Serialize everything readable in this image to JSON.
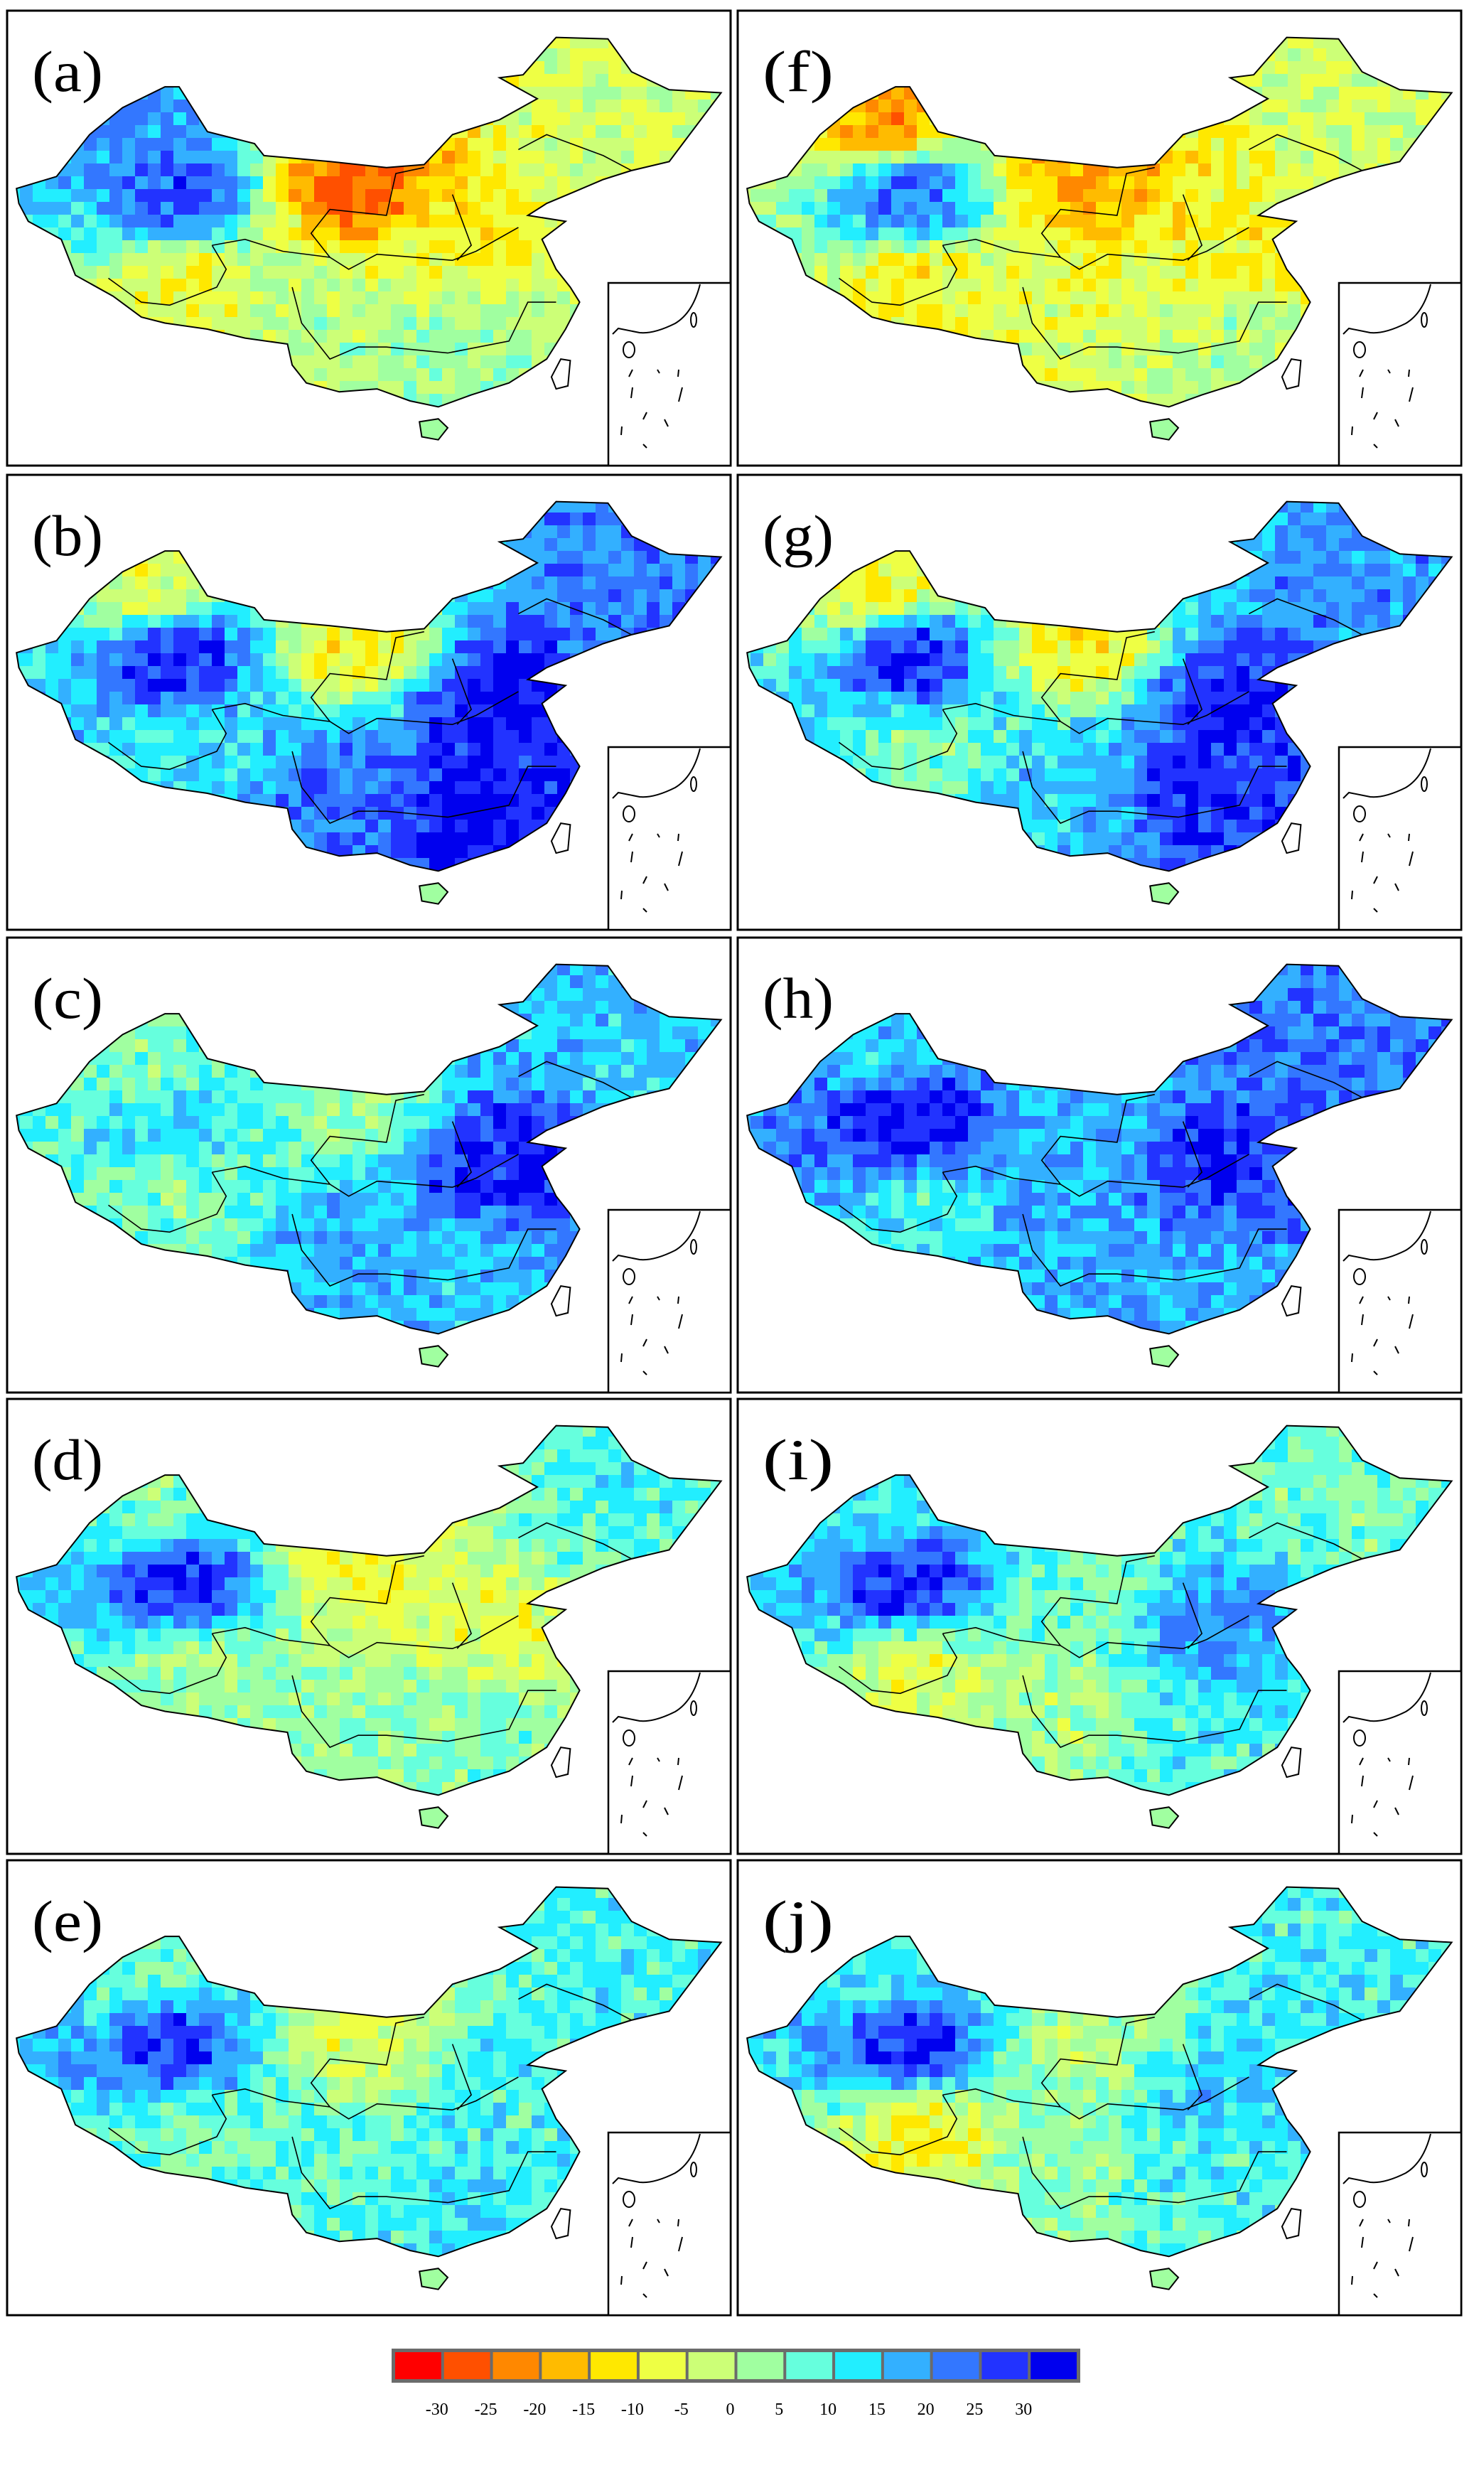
{
  "panels": [
    {
      "label": "(a)",
      "column": "left",
      "row": 0,
      "regions": {
        "NW": 20,
        "TB": 25,
        "TP": -8,
        "NM": -25,
        "NE": -3,
        "NC": -10,
        "SW": 0,
        "SE": 3
      }
    },
    {
      "label": "(b)",
      "column": "left",
      "row": 1,
      "regions": {
        "NW": -5,
        "TB": 30,
        "TP": 10,
        "NM": -10,
        "NE": 22,
        "NC": 32,
        "SW": 22,
        "SE": 32
      }
    },
    {
      "label": "(c)",
      "column": "left",
      "row": 2,
      "regions": {
        "NW": 5,
        "TB": 12,
        "TP": 5,
        "NM": 3,
        "NE": 15,
        "NC": 30,
        "SW": 18,
        "SE": 15
      }
    },
    {
      "label": "(d)",
      "column": "left",
      "row": 3,
      "regions": {
        "NW": 5,
        "TB": 30,
        "TP": 0,
        "NM": -8,
        "NE": 10,
        "NC": -5,
        "SW": 3,
        "SE": 5
      }
    },
    {
      "label": "(e)",
      "column": "left",
      "row": 4,
      "regions": {
        "NW": 5,
        "TB": 28,
        "TP": 5,
        "NM": -5,
        "NE": 10,
        "NC": 10,
        "SW": 8,
        "SE": 12
      }
    },
    {
      "label": "(f)",
      "column": "right",
      "row": 0,
      "regions": {
        "NW": -20,
        "TB": 25,
        "TP": -10,
        "NM": -18,
        "NE": -3,
        "NC": -10,
        "SW": -5,
        "SE": 0
      }
    },
    {
      "label": "(g)",
      "column": "right",
      "row": 1,
      "regions": {
        "NW": -10,
        "TB": 30,
        "TP": 5,
        "NM": -10,
        "NE": 20,
        "NC": 30,
        "SW": 15,
        "SE": 28
      }
    },
    {
      "label": "(h)",
      "column": "right",
      "row": 2,
      "regions": {
        "NW": 15,
        "TB": 32,
        "TP": 10,
        "NM": 15,
        "NE": 22,
        "NC": 28,
        "SW": 18,
        "SE": 18
      }
    },
    {
      "label": "(i)",
      "column": "right",
      "row": 3,
      "regions": {
        "NW": 10,
        "TB": 30,
        "TP": -5,
        "NM": 5,
        "NE": 5,
        "NC": 20,
        "SW": 0,
        "SE": 10
      }
    },
    {
      "label": "(j)",
      "column": "right",
      "row": 4,
      "regions": {
        "NW": 10,
        "TB": 30,
        "TP": -10,
        "NM": 0,
        "NE": 10,
        "NC": 15,
        "SW": 3,
        "SE": 10
      }
    }
  ],
  "colorbar": {
    "ticks": [
      "-30",
      "-25",
      "-20",
      "-15",
      "-10",
      "-5",
      "0",
      "5",
      "10",
      "15",
      "20",
      "25",
      "30"
    ],
    "tick_values": [
      -30,
      -25,
      -20,
      -15,
      -10,
      -5,
      0,
      5,
      10,
      15,
      20,
      25,
      30
    ],
    "colors": [
      "#ff0000",
      "#ff5000",
      "#ff8800",
      "#ffbb00",
      "#ffe800",
      "#eeff44",
      "#ccff77",
      "#a0ffa0",
      "#66ffdd",
      "#22eeff",
      "#33b0ff",
      "#3377ff",
      "#2233ff",
      "#0000ee"
    ]
  }
}
